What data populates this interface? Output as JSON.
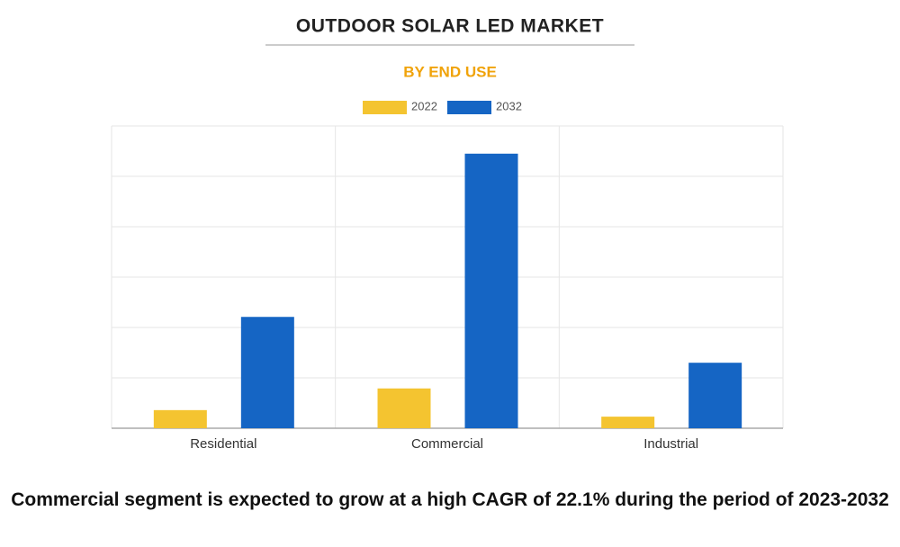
{
  "chart_data": {
    "type": "bar",
    "title": "OUTDOOR SOLAR LED MARKET",
    "subtitle": "BY END USE",
    "categories": [
      "Residential",
      "Commercial",
      "Industrial"
    ],
    "series": [
      {
        "name": "2022",
        "color": "#f4c430",
        "values": [
          0.36,
          0.79,
          0.23
        ]
      },
      {
        "name": "2032",
        "color": "#1565c4",
        "values": [
          2.21,
          5.45,
          1.3
        ]
      }
    ],
    "ylim": [
      0,
      6
    ],
    "yticks": [
      {
        "value": 0,
        "label": null
      },
      {
        "value": 1,
        "label": null
      },
      {
        "value": 2,
        "label": null
      },
      {
        "value": 3,
        "label": null
      },
      {
        "value": 4,
        "label": null
      },
      {
        "value": 5,
        "label": null
      },
      {
        "value": 6,
        "label": null
      }
    ],
    "grid": true,
    "legend": "top",
    "caption": "Commercial segment is expected to grow at a high CAGR of 22.1% during the period of 2023-2032"
  }
}
